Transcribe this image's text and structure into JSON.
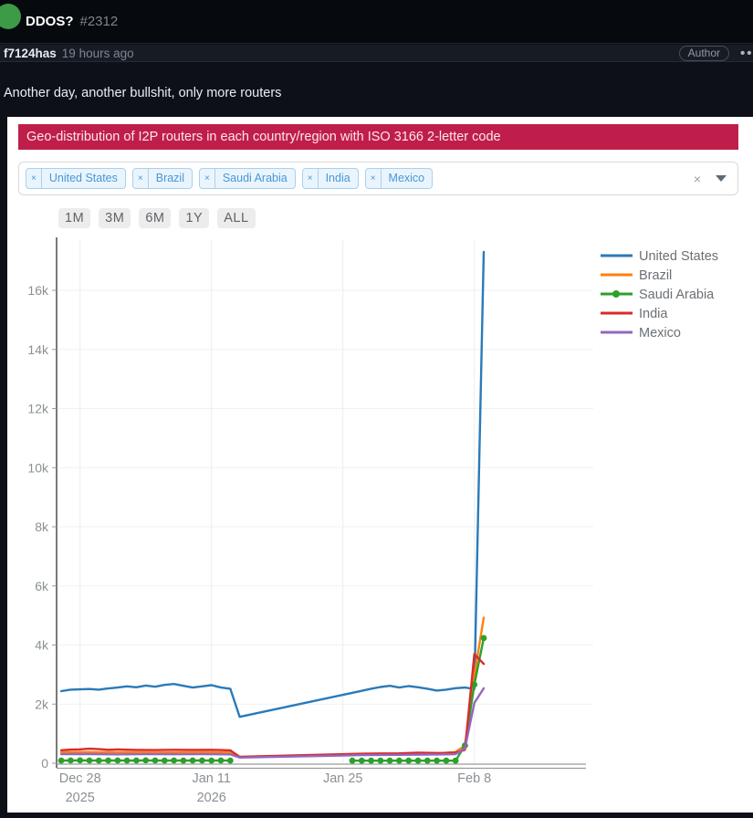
{
  "issue": {
    "title": "DDOS?",
    "number": "#2312",
    "state_color": "#3d9a47"
  },
  "comment": {
    "author": "f7124has",
    "time": "19 hours ago",
    "badge": "Author",
    "menu_icon": "kebab-horizontal",
    "body": "Another day, another bullshit, only more routers"
  },
  "panel": {
    "banner": "Geo-distribution of I2P routers in each country/region with ISO 3166 2-letter code",
    "banner_color": "#c01e4a",
    "filter": {
      "tags": [
        "United States",
        "Brazil",
        "Saudi Arabia",
        "India",
        "Mexico"
      ],
      "remove_icon": "x",
      "clear_icon": "×",
      "dropdown_icon": "caret-down"
    },
    "range_buttons": [
      "1M",
      "3M",
      "6M",
      "1Y",
      "ALL"
    ]
  },
  "chart_data": {
    "type": "line",
    "title": "",
    "xlabel": "",
    "ylabel": "",
    "grid": true,
    "legend_position": "top-right-outside",
    "ylim": [
      0,
      17700
    ],
    "x_ticks": [
      {
        "date": "2025-12-28",
        "label": "Dec 28",
        "sub": "2025"
      },
      {
        "date": "2026-01-11",
        "label": "Jan 11",
        "sub": "2026"
      },
      {
        "date": "2026-01-25",
        "label": "Jan 25",
        "sub": ""
      },
      {
        "date": "2026-02-08",
        "label": "Feb 8",
        "sub": ""
      }
    ],
    "y_ticks": [
      {
        "label": "0",
        "value": 0
      },
      {
        "label": "2k",
        "value": 2000
      },
      {
        "label": "4k",
        "value": 4000
      },
      {
        "label": "6k",
        "value": 6000
      },
      {
        "label": "8k",
        "value": 8000
      },
      {
        "label": "10k",
        "value": 10000
      },
      {
        "label": "12k",
        "value": 12000
      },
      {
        "label": "14k",
        "value": 14000
      },
      {
        "label": "16k",
        "value": 16000
      }
    ],
    "series": [
      {
        "name": "United States",
        "color": "#2a7ab9",
        "marker": false,
        "segments": [
          [
            [
              "2025-12-26",
              2440
            ],
            [
              "2025-12-27",
              2490
            ],
            [
              "2025-12-28",
              2500
            ],
            [
              "2025-12-29",
              2510
            ],
            [
              "2025-12-30",
              2490
            ],
            [
              "2025-12-31",
              2530
            ],
            [
              "2026-01-01",
              2560
            ],
            [
              "2026-01-02",
              2600
            ],
            [
              "2026-01-03",
              2570
            ],
            [
              "2026-01-04",
              2630
            ],
            [
              "2026-01-05",
              2590
            ],
            [
              "2026-01-06",
              2650
            ],
            [
              "2026-01-07",
              2680
            ],
            [
              "2026-01-08",
              2620
            ],
            [
              "2026-01-09",
              2560
            ],
            [
              "2026-01-10",
              2600
            ],
            [
              "2026-01-11",
              2640
            ],
            [
              "2026-01-12",
              2560
            ],
            [
              "2026-01-13",
              2520
            ],
            [
              "2026-01-14",
              1570
            ],
            [
              "2026-01-27",
              2450
            ],
            [
              "2026-01-28",
              2520
            ],
            [
              "2026-01-29",
              2580
            ],
            [
              "2026-01-30",
              2620
            ],
            [
              "2026-01-31",
              2560
            ],
            [
              "2026-02-01",
              2610
            ],
            [
              "2026-02-02",
              2570
            ],
            [
              "2026-02-03",
              2520
            ],
            [
              "2026-02-04",
              2460
            ],
            [
              "2026-02-05",
              2490
            ],
            [
              "2026-02-06",
              2540
            ],
            [
              "2026-02-07",
              2560
            ],
            [
              "2026-02-08",
              2510
            ],
            [
              "2026-02-09",
              17300
            ]
          ]
        ]
      },
      {
        "name": "Brazil",
        "color": "#ff7f0e",
        "marker": false,
        "segments": [
          [
            [
              "2025-12-26",
              370
            ],
            [
              "2025-12-28",
              380
            ],
            [
              "2025-12-31",
              370
            ],
            [
              "2026-01-03",
              375
            ],
            [
              "2026-01-06",
              365
            ],
            [
              "2026-01-09",
              370
            ],
            [
              "2026-01-11",
              375
            ],
            [
              "2026-01-13",
              360
            ],
            [
              "2026-01-14",
              205
            ],
            [
              "2026-01-27",
              300
            ],
            [
              "2026-01-30",
              310
            ],
            [
              "2026-02-02",
              325
            ],
            [
              "2026-02-04",
              330
            ],
            [
              "2026-02-06",
              380
            ],
            [
              "2026-02-07",
              600
            ],
            [
              "2026-02-08",
              2970
            ],
            [
              "2026-02-09",
              4925
            ]
          ]
        ]
      },
      {
        "name": "Saudi Arabia",
        "color": "#2ca02c",
        "marker": true,
        "segments": [
          [
            [
              "2025-12-26",
              90
            ],
            [
              "2025-12-27",
              92
            ],
            [
              "2025-12-28",
              95
            ],
            [
              "2025-12-29",
              93
            ],
            [
              "2025-12-30",
              90
            ],
            [
              "2025-12-31",
              92
            ],
            [
              "2026-01-01",
              94
            ],
            [
              "2026-01-02",
              91
            ],
            [
              "2026-01-03",
              93
            ],
            [
              "2026-01-04",
              95
            ],
            [
              "2026-01-05",
              92
            ],
            [
              "2026-01-06",
              90
            ],
            [
              "2026-01-07",
              93
            ],
            [
              "2026-01-08",
              91
            ],
            [
              "2026-01-09",
              94
            ],
            [
              "2026-01-10",
              92
            ],
            [
              "2026-01-11",
              90
            ],
            [
              "2026-01-12",
              93
            ],
            [
              "2026-01-13",
              91
            ]
          ],
          [
            [
              "2026-01-26",
              85
            ],
            [
              "2026-01-27",
              86
            ],
            [
              "2026-01-28",
              88
            ],
            [
              "2026-01-29",
              87
            ],
            [
              "2026-01-30",
              85
            ],
            [
              "2026-01-31",
              88
            ],
            [
              "2026-02-01",
              86
            ],
            [
              "2026-02-02",
              87
            ],
            [
              "2026-02-03",
              85
            ],
            [
              "2026-02-04",
              88
            ],
            [
              "2026-02-05",
              86
            ],
            [
              "2026-02-06",
              85
            ],
            [
              "2026-02-07",
              600
            ],
            [
              "2026-02-08",
              2660
            ],
            [
              "2026-02-09",
              4235
            ]
          ]
        ]
      },
      {
        "name": "India",
        "color": "#d92b2b",
        "marker": false,
        "segments": [
          [
            [
              "2025-12-26",
              440
            ],
            [
              "2025-12-27",
              460
            ],
            [
              "2025-12-28",
              470
            ],
            [
              "2025-12-29",
              490
            ],
            [
              "2025-12-30",
              475
            ],
            [
              "2025-12-31",
              455
            ],
            [
              "2026-01-01",
              465
            ],
            [
              "2026-01-03",
              450
            ],
            [
              "2026-01-05",
              445
            ],
            [
              "2026-01-07",
              455
            ],
            [
              "2026-01-09",
              450
            ],
            [
              "2026-01-11",
              455
            ],
            [
              "2026-01-12",
              445
            ],
            [
              "2026-01-13",
              435
            ],
            [
              "2026-01-14",
              215
            ],
            [
              "2026-01-27",
              320
            ],
            [
              "2026-01-29",
              330
            ],
            [
              "2026-01-31",
              335
            ],
            [
              "2026-02-02",
              355
            ],
            [
              "2026-02-04",
              345
            ],
            [
              "2026-02-05",
              350
            ],
            [
              "2026-02-06",
              360
            ],
            [
              "2026-02-07",
              450
            ],
            [
              "2026-02-08",
              3690
            ],
            [
              "2026-02-09",
              3360
            ]
          ]
        ]
      },
      {
        "name": "Mexico",
        "color": "#9467bd",
        "marker": false,
        "segments": [
          [
            [
              "2025-12-26",
              305
            ],
            [
              "2025-12-29",
              308
            ],
            [
              "2026-01-01",
              300
            ],
            [
              "2026-01-04",
              305
            ],
            [
              "2026-01-07",
              302
            ],
            [
              "2026-01-10",
              305
            ],
            [
              "2026-01-13",
              300
            ],
            [
              "2026-01-14",
              190
            ],
            [
              "2026-01-27",
              275
            ],
            [
              "2026-01-31",
              285
            ],
            [
              "2026-02-03",
              295
            ],
            [
              "2026-02-05",
              300
            ],
            [
              "2026-02-06",
              305
            ],
            [
              "2026-02-07",
              500
            ],
            [
              "2026-02-08",
              2040
            ],
            [
              "2026-02-09",
              2535
            ]
          ]
        ]
      }
    ]
  }
}
